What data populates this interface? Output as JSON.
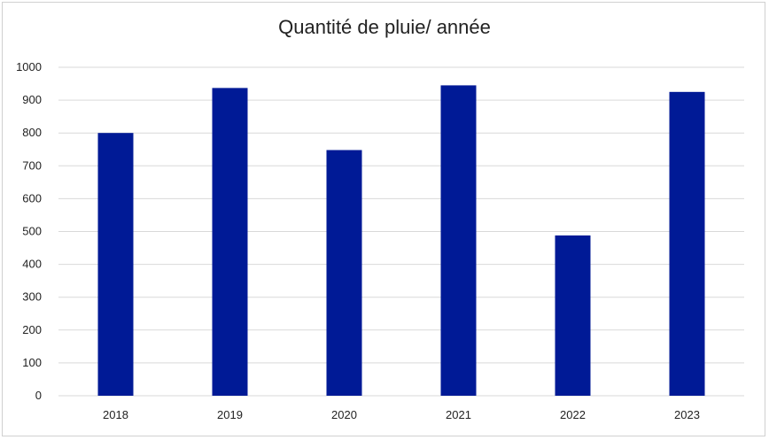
{
  "chart_data": {
    "type": "bar",
    "title": "Quantité de pluie/ année",
    "xlabel": "",
    "ylabel": "",
    "categories": [
      "2018",
      "2019",
      "2020",
      "2021",
      "2022",
      "2023"
    ],
    "values": [
      800,
      937,
      748,
      945,
      488,
      925
    ],
    "ylim": [
      0,
      1000
    ],
    "yticks": [
      0,
      100,
      200,
      300,
      400,
      500,
      600,
      700,
      800,
      900,
      1000
    ],
    "ytick_labels": [
      "0",
      "100",
      "200",
      "300",
      "400",
      "500",
      "600",
      "700",
      "800",
      "900",
      "1000"
    ],
    "grid": true,
    "legend": "none",
    "bar_color": "#001a96",
    "grid_color": "#d9d9d9"
  }
}
